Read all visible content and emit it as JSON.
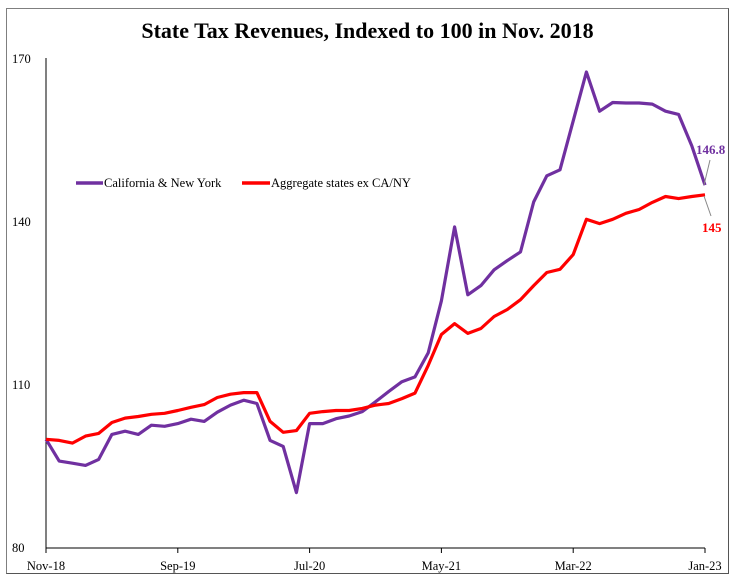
{
  "chart_data": {
    "type": "line",
    "title": "State Tax Revenues, Indexed to 100 in Nov. 2018",
    "xlabel": "",
    "ylabel": "",
    "ylim": [
      80,
      170
    ],
    "yticks": [
      80,
      110,
      140,
      170
    ],
    "xtick_labels": [
      "Nov-18",
      "Sep-19",
      "Jul-20",
      "May-21",
      "Mar-22",
      "Jan-23"
    ],
    "xtick_month_index": [
      0,
      10,
      20,
      30,
      40,
      50
    ],
    "n_points": 51,
    "grid": false,
    "legend_position": "upper-left-inside",
    "series": [
      {
        "name": "California & New York",
        "color": "#7030a0",
        "values": [
          100.0,
          96.0,
          95.6,
          95.2,
          96.3,
          100.9,
          101.5,
          100.9,
          102.6,
          102.4,
          102.9,
          103.7,
          103.3,
          105.0,
          106.3,
          107.2,
          106.6,
          99.8,
          98.7,
          90.2,
          102.9,
          102.9,
          103.8,
          104.3,
          105.1,
          106.9,
          108.8,
          110.6,
          111.5,
          115.9,
          125.5,
          139.1,
          126.6,
          128.3,
          131.2,
          132.9,
          134.5,
          143.7,
          148.5,
          149.6,
          158.6,
          167.6,
          160.4,
          162.0,
          161.9,
          161.9,
          161.7,
          160.4,
          159.8,
          154.0,
          146.8
        ]
      },
      {
        "name": "Aggregate states ex CA/NY",
        "color": "#ff0000",
        "values": [
          100.0,
          99.8,
          99.3,
          100.6,
          101.1,
          103.1,
          103.9,
          104.2,
          104.6,
          104.8,
          105.3,
          105.9,
          106.4,
          107.7,
          108.3,
          108.6,
          108.6,
          103.3,
          101.3,
          101.6,
          104.8,
          105.1,
          105.3,
          105.3,
          105.7,
          106.3,
          106.6,
          107.5,
          108.5,
          113.6,
          119.3,
          121.3,
          119.5,
          120.4,
          122.6,
          123.9,
          125.7,
          128.3,
          130.7,
          131.3,
          134.0,
          140.5,
          139.7,
          140.5,
          141.6,
          142.3,
          143.6,
          144.7,
          144.3,
          144.7,
          145.0
        ]
      }
    ],
    "annotations": [
      {
        "series": "California & New York",
        "text": "146.8",
        "color": "#7030a0"
      },
      {
        "series": "Aggregate states ex CA/NY",
        "text": "145",
        "color": "#ff0000"
      }
    ]
  }
}
